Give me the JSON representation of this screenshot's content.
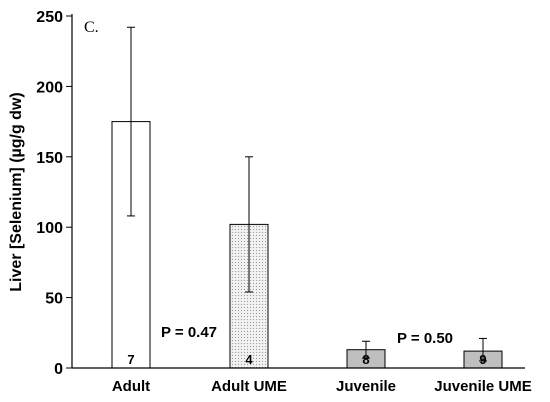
{
  "chart_data": {
    "type": "bar",
    "panel_label": "C.",
    "ylabel": "Liver [Selenium] (µg/g dw)",
    "xlabel": "",
    "ylim": [
      0,
      250
    ],
    "yticks": [
      0,
      50,
      100,
      150,
      200,
      250
    ],
    "grid": false,
    "categories": [
      "Adult",
      "Adult UME",
      "Juvenile",
      "Juvenile UME"
    ],
    "values": [
      175,
      102,
      13,
      12
    ],
    "error": [
      [
        108,
        242
      ],
      [
        54,
        150
      ],
      [
        7,
        19
      ],
      [
        5,
        21
      ]
    ],
    "n_labels": [
      "7",
      "4",
      "8",
      "9"
    ],
    "fills": [
      "plain-white",
      "light-dotted",
      "medium-gray",
      "medium-gray"
    ],
    "annotations": [
      {
        "text": "P = 0.47",
        "between": [
          "Adult",
          "Adult UME"
        ]
      },
      {
        "text": "P = 0.50",
        "between": [
          "Juvenile",
          "Juvenile UME"
        ]
      }
    ],
    "colors": {
      "axis": "#000000",
      "bar_edge": "#000000",
      "bar_white": "#ffffff",
      "bar_dotted_bg": "#f2f2f2",
      "bar_dotted_dot": "#9a9a9a",
      "bar_gray": "#bfbfbf"
    }
  }
}
